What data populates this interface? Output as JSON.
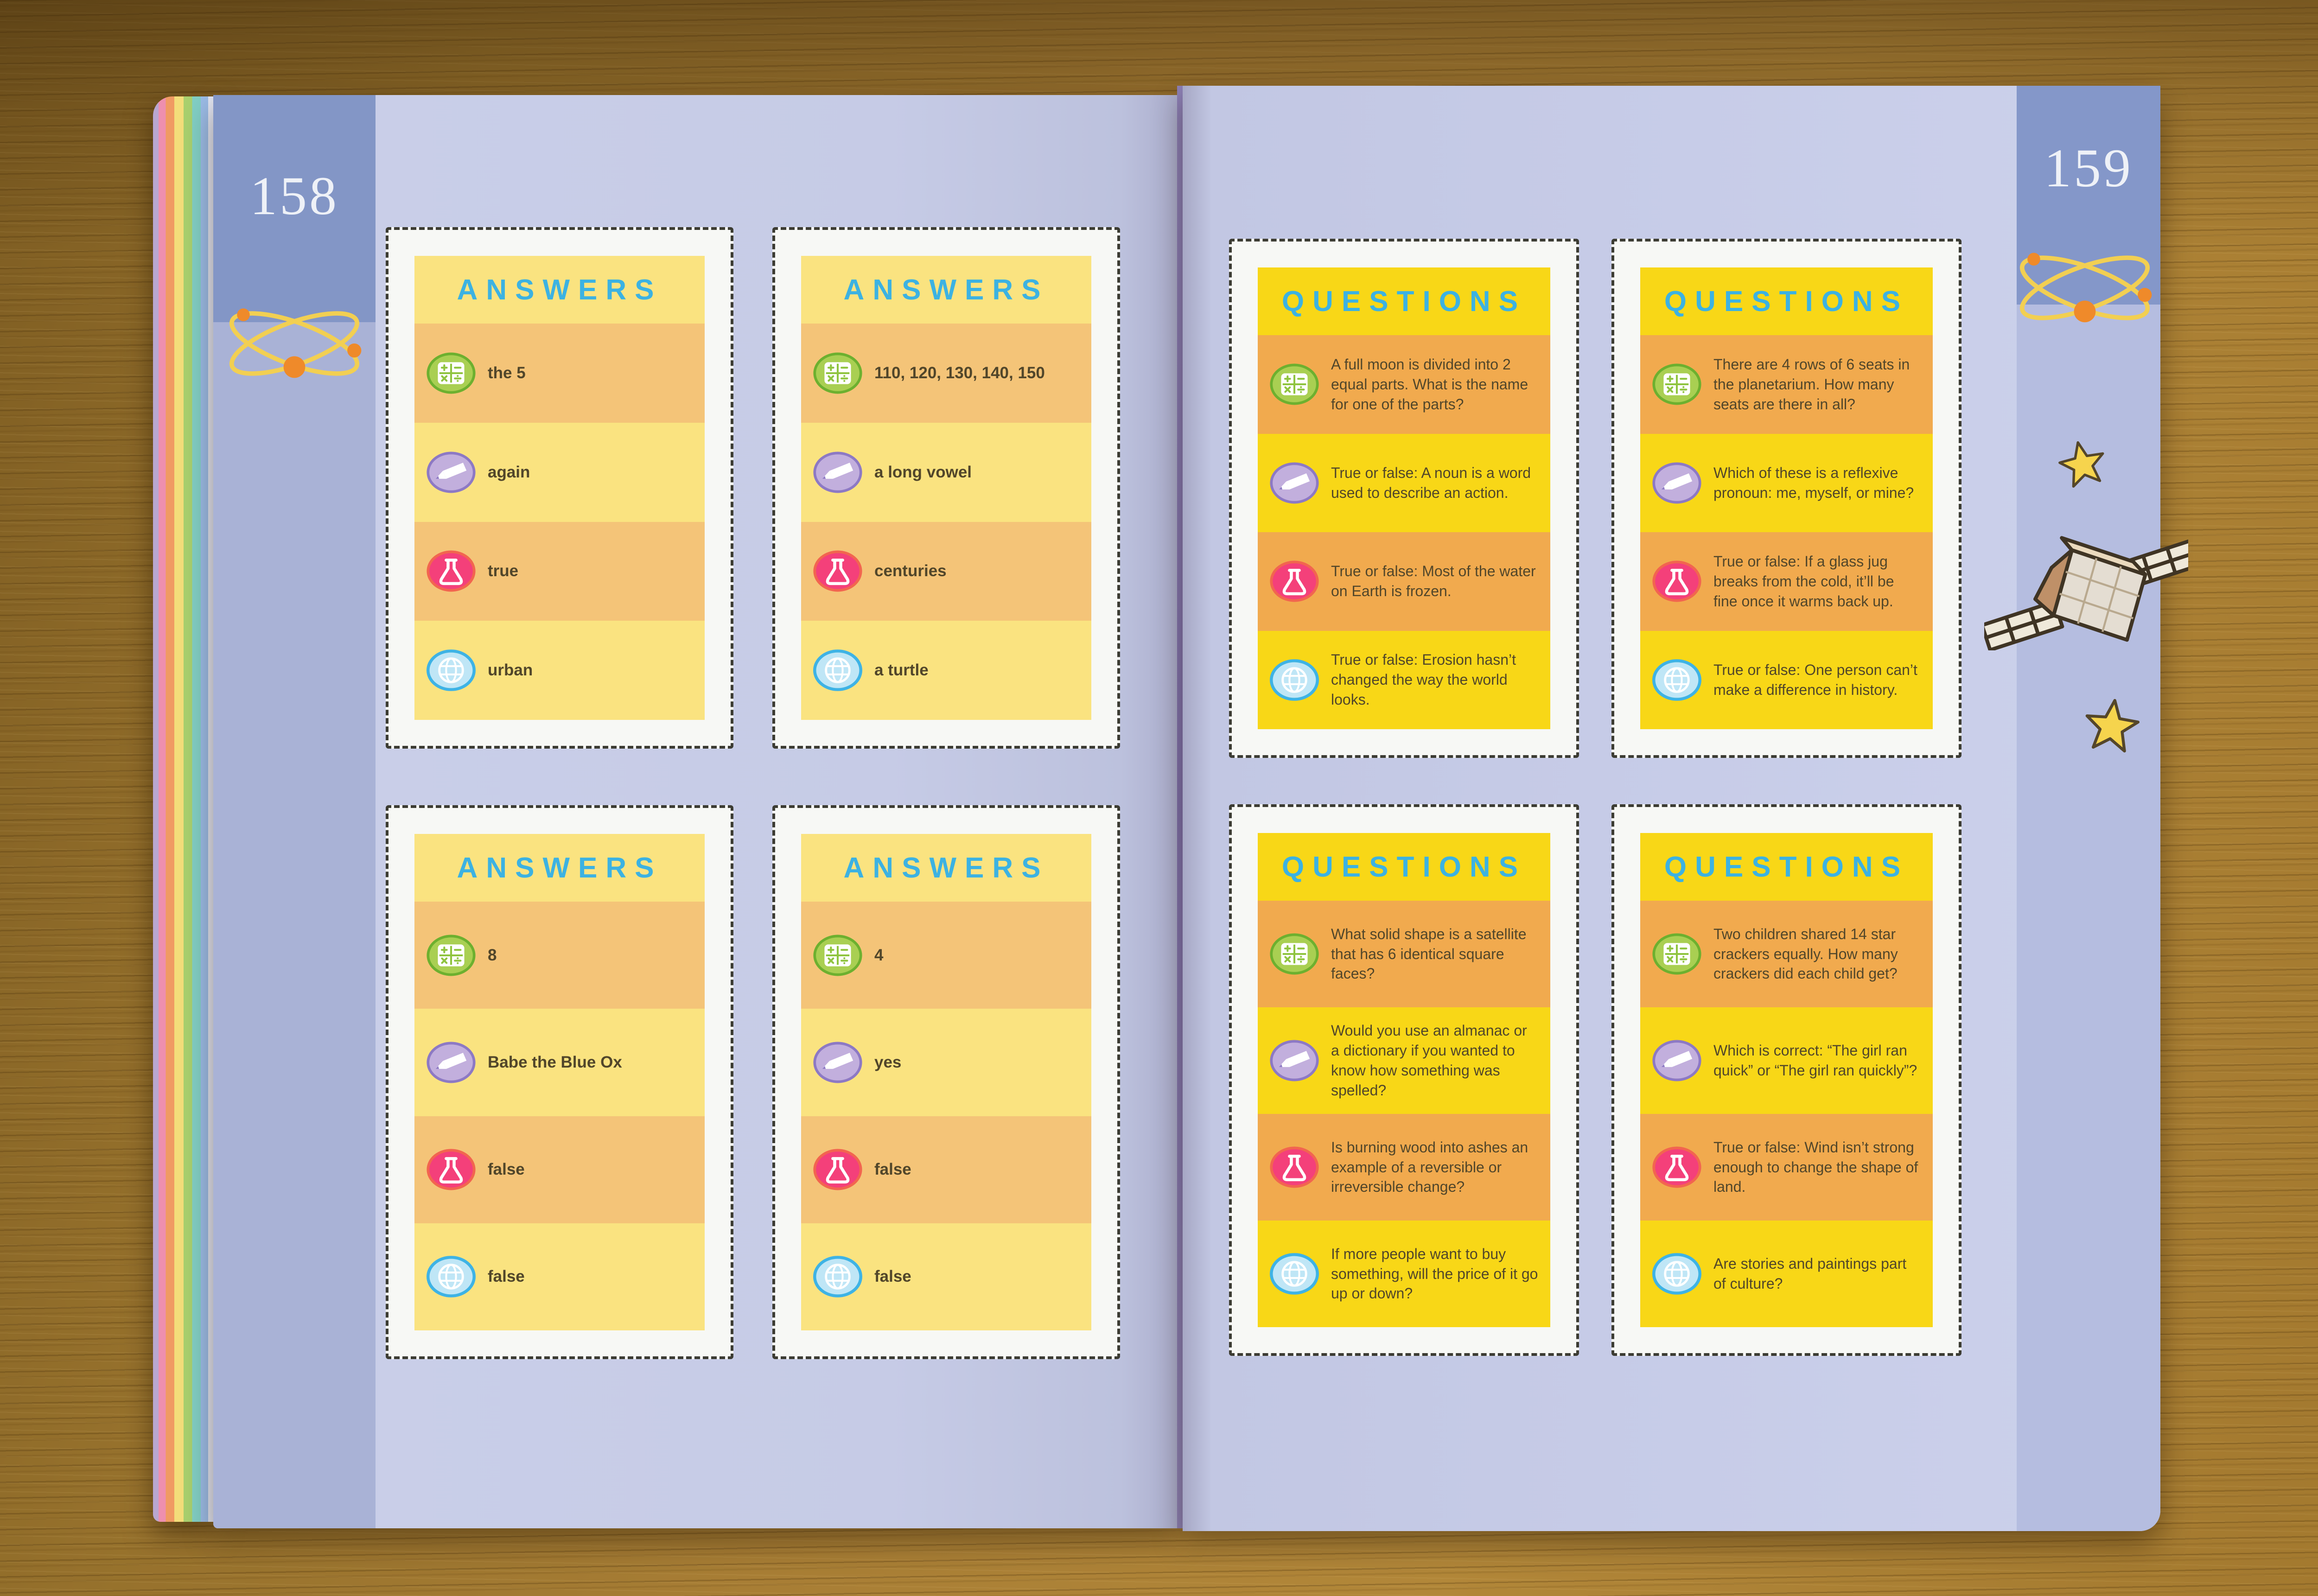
{
  "book": {
    "left_page": {
      "page_number": "158",
      "margin_decorations": [
        "atom-icon"
      ],
      "cards": [
        {
          "title": "ANSWERS",
          "style": "answers",
          "rows": [
            {
              "icon": "math-calculator-icon",
              "text": "the 5"
            },
            {
              "icon": "writing-pencil-icon",
              "text": "again"
            },
            {
              "icon": "science-flask-icon",
              "text": "true"
            },
            {
              "icon": "geography-globe-icon",
              "text": "urban"
            }
          ]
        },
        {
          "title": "ANSWERS",
          "style": "answers",
          "rows": [
            {
              "icon": "math-calculator-icon",
              "text": "110, 120, 130, 140, 150"
            },
            {
              "icon": "writing-pencil-icon",
              "text": "a long vowel"
            },
            {
              "icon": "science-flask-icon",
              "text": "centuries"
            },
            {
              "icon": "geography-globe-icon",
              "text": "a turtle"
            }
          ]
        },
        {
          "title": "ANSWERS",
          "style": "answers",
          "rows": [
            {
              "icon": "math-calculator-icon",
              "text": "8"
            },
            {
              "icon": "writing-pencil-icon",
              "text": "Babe the Blue Ox"
            },
            {
              "icon": "science-flask-icon",
              "text": "false"
            },
            {
              "icon": "geography-globe-icon",
              "text": "false"
            }
          ]
        },
        {
          "title": "ANSWERS",
          "style": "answers",
          "rows": [
            {
              "icon": "math-calculator-icon",
              "text": "4"
            },
            {
              "icon": "writing-pencil-icon",
              "text": "yes"
            },
            {
              "icon": "science-flask-icon",
              "text": "false"
            },
            {
              "icon": "geography-globe-icon",
              "text": "false"
            }
          ]
        }
      ]
    },
    "right_page": {
      "page_number": "159",
      "margin_decorations": [
        "atom-icon",
        "star-icon",
        "satellite-icon",
        "star-icon"
      ],
      "cards": [
        {
          "title": "QUESTIONS",
          "style": "questions",
          "rows": [
            {
              "icon": "math-calculator-icon",
              "text": "A full moon is divided into 2 equal parts. What is the name for one of the parts?"
            },
            {
              "icon": "writing-pencil-icon",
              "text": "True or false: A noun is a word used to describe an action."
            },
            {
              "icon": "science-flask-icon",
              "text": "True or false: Most of the water on Earth is frozen."
            },
            {
              "icon": "geography-globe-icon",
              "text": "True or false: Erosion hasn’t changed the way the world looks."
            }
          ]
        },
        {
          "title": "QUESTIONS",
          "style": "questions",
          "rows": [
            {
              "icon": "math-calculator-icon",
              "text": "There are 4 rows of 6 seats in the planetarium. How many seats are there in all?"
            },
            {
              "icon": "writing-pencil-icon",
              "text": "Which of these is a reflexive pronoun: me, myself, or mine?"
            },
            {
              "icon": "science-flask-icon",
              "text": "True or false: If a glass jug breaks from the cold, it’ll be fine once it warms back up."
            },
            {
              "icon": "geography-globe-icon",
              "text": "True or false: One person can’t make a difference in history."
            }
          ]
        },
        {
          "title": "QUESTIONS",
          "style": "questions",
          "rows": [
            {
              "icon": "math-calculator-icon",
              "text": "What solid shape is a satellite that has 6 identical square faces?"
            },
            {
              "icon": "writing-pencil-icon",
              "text": "Would you use an almanac or a dictionary if you wanted to know how something was spelled?"
            },
            {
              "icon": "science-flask-icon",
              "text": "Is burning wood into ashes an example of a reversible or irreversible change?"
            },
            {
              "icon": "geography-globe-icon",
              "text": "If more people want to buy something, will the price of it go up or down?"
            }
          ]
        },
        {
          "title": "QUESTIONS",
          "style": "questions",
          "rows": [
            {
              "icon": "math-calculator-icon",
              "text": "Two children shared 14 star crackers equally. How many crackers did each child get?"
            },
            {
              "icon": "writing-pencil-icon",
              "text": "Which is correct: “The girl ran quick” or “The girl ran quickly”?"
            },
            {
              "icon": "science-flask-icon",
              "text": "True or false: Wind isn’t strong enough to change the shape of land."
            },
            {
              "icon": "geography-globe-icon",
              "text": "Are stories and paintings part of culture?"
            }
          ]
        }
      ]
    },
    "colors": {
      "answers_card_base": "#fae380",
      "answers_card_stripe": "#f4c478",
      "questions_card_base": "#f8d717",
      "questions_card_stripe": "#f1aa4e",
      "card_title_blue": "#3cb2e2",
      "card_text": "#51462a",
      "page_lavender": "#c6cbe6",
      "margin_band_blue": "#a9b2d6",
      "page_number_tab_blue": "#8396c6",
      "math_icon_green": "#8fc43f",
      "writing_icon_purple": "#b7a0d8",
      "science_icon_pink": "#f4407a",
      "geography_icon_blue": "#8ed6f5",
      "wood_brown": "#a87e35"
    }
  }
}
